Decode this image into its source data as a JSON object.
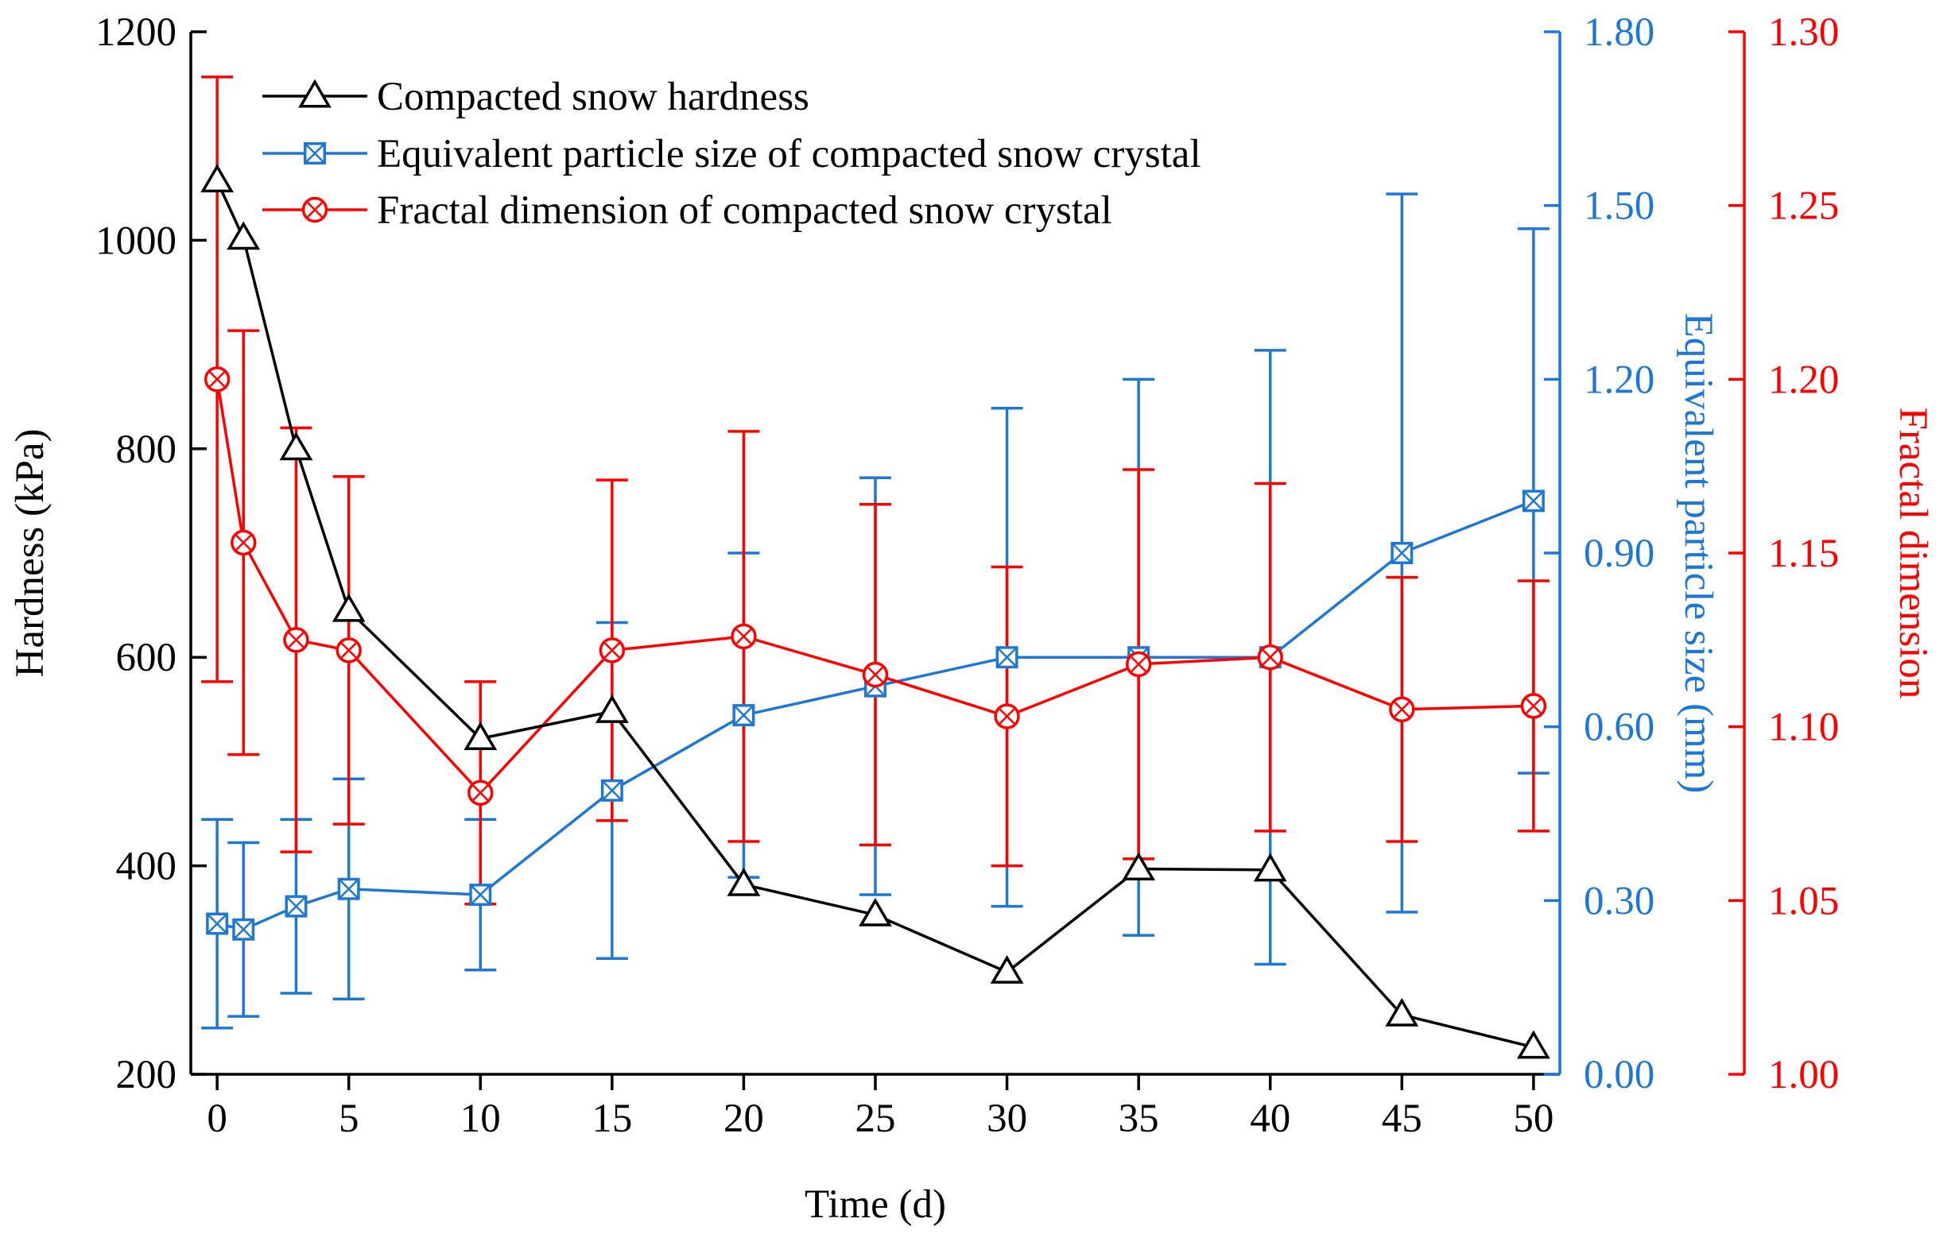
{
  "chart_data": {
    "type": "line",
    "title": "",
    "xlabel": "Time (d)",
    "x": [
      0,
      1,
      3,
      5,
      10,
      15,
      20,
      25,
      30,
      35,
      40,
      45,
      50
    ],
    "xticks": [
      0,
      5,
      10,
      15,
      20,
      25,
      30,
      35,
      40,
      45,
      50
    ],
    "xtick_labels": [
      "0",
      "5",
      "10",
      "15",
      "20",
      "25",
      "30",
      "35",
      "40",
      "45",
      "50"
    ],
    "xlim": [
      -1,
      51
    ],
    "axes": [
      {
        "id": "hardness",
        "side": "left",
        "label": "Hardness (kPa)",
        "color": "#000000",
        "ylim": [
          200,
          1200
        ],
        "ticks": [
          200,
          400,
          600,
          800,
          1000,
          1200
        ],
        "tick_labels": [
          "200",
          "400",
          "600",
          "800",
          "1000",
          "1200"
        ]
      },
      {
        "id": "particle",
        "side": "right-inner",
        "label": "Equivalent particle size (mm)",
        "color": "#1f77d4",
        "ylim": [
          0,
          1.8
        ],
        "ticks": [
          0,
          0.3,
          0.6,
          0.9,
          1.2,
          1.5,
          1.8
        ],
        "tick_labels": [
          "0.00",
          "0.30",
          "0.60",
          "0.90",
          "1.20",
          "1.50",
          "1.80"
        ]
      },
      {
        "id": "fractal",
        "side": "right-outer",
        "label": "Fractal dimension",
        "color": "#ff0000",
        "ylim": [
          1.0,
          1.3
        ],
        "ticks": [
          1.0,
          1.05,
          1.1,
          1.15,
          1.2,
          1.25,
          1.3
        ],
        "tick_labels": [
          "1.00",
          "1.05",
          "1.10",
          "1.15",
          "1.20",
          "1.25",
          "1.30"
        ]
      }
    ],
    "series": [
      {
        "name": "Compacted snow hardness",
        "axis": "hardness",
        "color": "#000000",
        "marker": "triangle",
        "values": [
          1057,
          1002,
          800,
          645,
          522,
          548,
          382,
          353,
          298,
          397,
          396,
          257,
          226
        ]
      },
      {
        "name": "Equivalent particle size of compacted snow crystal",
        "axis": "particle",
        "color": "#1f77d4",
        "marker": "square-x",
        "values": [
          0.26,
          0.25,
          0.29,
          0.32,
          0.31,
          0.49,
          0.62,
          0.67,
          0.72,
          0.72,
          0.72,
          0.9,
          0.99
        ],
        "errors": [
          0.18,
          0.15,
          0.15,
          0.19,
          0.13,
          0.29,
          0.28,
          0.36,
          0.43,
          0.48,
          0.53,
          0.62,
          0.47
        ]
      },
      {
        "name": "Fractal dimension of compacted snow crystal",
        "axis": "fractal",
        "color": "#ff0000",
        "marker": "circle-x",
        "values": [
          1.2,
          1.153,
          1.125,
          1.122,
          1.081,
          1.122,
          1.126,
          1.115,
          1.103,
          1.118,
          1.12,
          1.105,
          1.106
        ],
        "errors": [
          0.087,
          0.061,
          0.061,
          0.05,
          0.032,
          0.049,
          0.059,
          0.049,
          0.043,
          0.056,
          0.05,
          0.038,
          0.036
        ]
      }
    ],
    "legend": {
      "position": "top-left"
    }
  }
}
